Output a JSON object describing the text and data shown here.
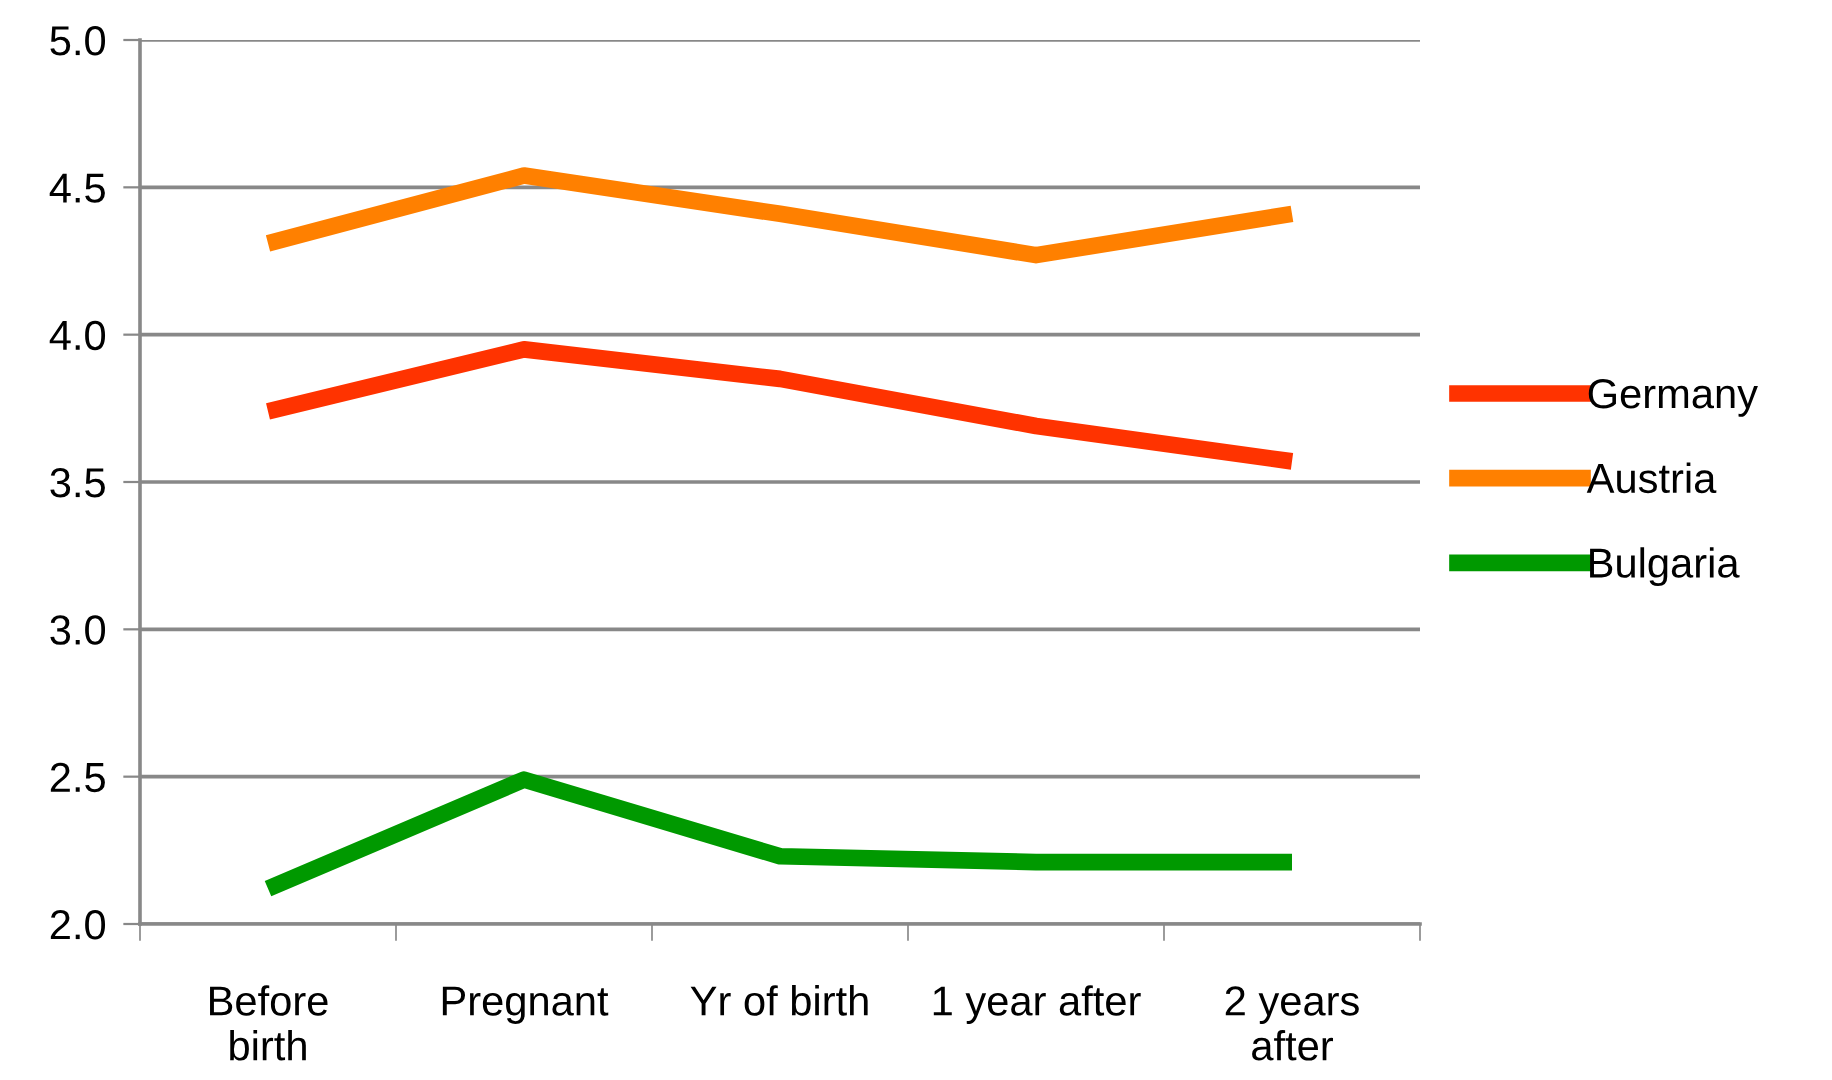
{
  "chart_data": {
    "type": "line",
    "categories": [
      "Before\nbirth",
      "Pregnant",
      "Yr of birth",
      "1 year after",
      "2 years\nafter"
    ],
    "series": [
      {
        "name": "Germany",
        "color": "#ff3300",
        "values": [
          3.74,
          3.95,
          3.85,
          3.69,
          3.57
        ]
      },
      {
        "name": "Austria",
        "color": "#ff8000",
        "values": [
          4.31,
          4.54,
          4.41,
          4.27,
          4.41
        ]
      },
      {
        "name": "Bulgaria",
        "color": "#009900",
        "values": [
          2.12,
          2.49,
          2.23,
          2.21,
          2.21
        ]
      }
    ],
    "ylim": [
      2.0,
      5.0
    ],
    "yticks": [
      {
        "value": 2.0,
        "label": "2.0"
      },
      {
        "value": 2.5,
        "label": "2.5"
      },
      {
        "value": 3.0,
        "label": "3.0"
      },
      {
        "value": 3.5,
        "label": "3.5"
      },
      {
        "value": 4.0,
        "label": "4.0"
      },
      {
        "value": 4.5,
        "label": "4.5"
      },
      {
        "value": 5.0,
        "label": "5.0"
      }
    ],
    "grid": "y",
    "legend": "right",
    "marker": "none",
    "line_style": "solid"
  }
}
